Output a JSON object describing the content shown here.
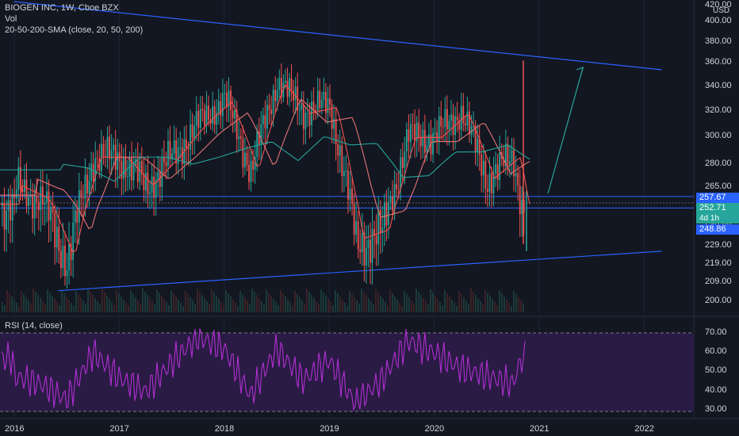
{
  "header": {
    "title": "BIOGEN INC, 1W, Cboe BZX",
    "volume": "Vol",
    "sma": "20-50-200-SMA (close, 20, 50, 200)"
  },
  "rsi_panel": {
    "title": "RSI (14, close)"
  },
  "chart_data": [
    {
      "type": "candlestick",
      "title": "BIOGEN INC, 1W, Cboe BZX",
      "y_axis_ticks": [
        "420.00",
        "USD",
        "400.00",
        "380.00",
        "360.00",
        "340.00",
        "320.00",
        "300.00",
        "280.00",
        "265.00",
        "249.00",
        "229.00",
        "219.00",
        "209.00",
        "200.00"
      ],
      "x_axis_ticks": [
        "2016",
        "2017",
        "2018",
        "2019",
        "2020",
        "2021",
        "2022"
      ],
      "price_badges": [
        {
          "label": "257.67",
          "color": "#2962ff"
        },
        {
          "label": "252.71",
          "color": "#26a69a"
        },
        {
          "label": "4d 1h",
          "color": "#26a69a"
        },
        {
          "label": "248.86",
          "color": "#2962ff"
        }
      ],
      "series": [
        {
          "name": "close",
          "x": [
            "2016-01",
            "2016-04",
            "2016-07",
            "2016-10",
            "2017-01",
            "2017-04",
            "2017-07",
            "2017-10",
            "2018-01",
            "2018-04",
            "2018-07",
            "2018-10",
            "2019-01",
            "2019-04",
            "2019-07",
            "2019-10",
            "2020-01",
            "2020-04",
            "2020-07",
            "2020-10",
            "2020-11"
          ],
          "values": [
            265,
            255,
            220,
            285,
            285,
            265,
            285,
            310,
            330,
            275,
            345,
            320,
            325,
            230,
            235,
            300,
            300,
            320,
            270,
            285,
            250
          ]
        }
      ],
      "trendlines": [
        {
          "from": [
            "2016-01",
            425
          ],
          "to": [
            "2022-03",
            354
          ]
        },
        {
          "from": [
            "2016-06",
            205
          ],
          "to": [
            "2022-03",
            226
          ]
        }
      ],
      "horizontal_levels": [
        257.67,
        248.86
      ],
      "arrow": {
        "from": [
          "2021-02",
          260
        ],
        "to": [
          "2021-06",
          356
        ]
      }
    },
    {
      "type": "line",
      "title": "RSI (14, close)",
      "y_axis_ticks": [
        "70.00",
        "60.00",
        "50.00",
        "40.00",
        "30.00"
      ],
      "bands": [
        70,
        30
      ],
      "x": [
        "2016-01",
        "2016-04",
        "2016-07",
        "2016-10",
        "2017-01",
        "2017-04",
        "2017-07",
        "2017-10",
        "2018-01",
        "2018-04",
        "2018-07",
        "2018-10",
        "2019-01",
        "2019-04",
        "2019-07",
        "2019-10",
        "2020-01",
        "2020-04",
        "2020-07",
        "2020-10",
        "2020-11"
      ],
      "values": [
        48,
        44,
        36,
        60,
        47,
        40,
        55,
        68,
        62,
        38,
        62,
        46,
        56,
        34,
        46,
        66,
        60,
        52,
        48,
        44,
        57
      ]
    }
  ]
}
